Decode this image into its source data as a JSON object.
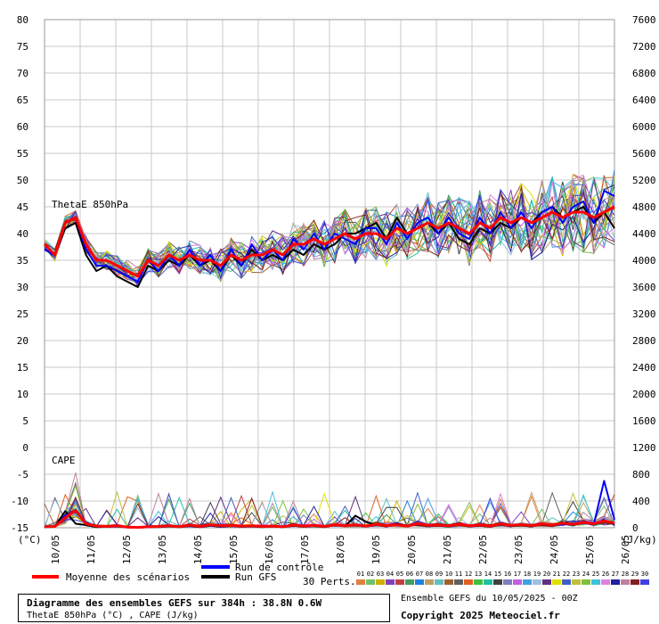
{
  "chart_data": {
    "type": "line",
    "title": "",
    "left_axis": {
      "label": "(°C)",
      "ticks": [
        80,
        75,
        70,
        65,
        60,
        55,
        50,
        45,
        40,
        35,
        30,
        25,
        20,
        15,
        10,
        5,
        0,
        -5,
        -10,
        -15
      ],
      "ylim": [
        -15,
        80
      ]
    },
    "right_axis": {
      "label": "(J/kg)",
      "ticks": [
        7600,
        7200,
        6800,
        6400,
        6000,
        5600,
        5200,
        4800,
        4400,
        4000,
        3600,
        3200,
        2800,
        2400,
        2000,
        1600,
        1200,
        800,
        400,
        0
      ],
      "ylim": [
        0,
        7600
      ]
    },
    "x_labels": [
      "10/05",
      "11/05",
      "12/05",
      "13/05",
      "14/05",
      "15/05",
      "16/05",
      "17/05",
      "18/05",
      "19/05",
      "20/05",
      "21/05",
      "22/05",
      "23/05",
      "24/05",
      "25/05",
      "26/05"
    ],
    "panel_labels": {
      "thetae": "ThetaE 850hPa",
      "cape": "CAPE"
    },
    "thetae_mean": [
      38,
      36,
      42,
      43,
      38,
      35,
      35,
      34,
      33,
      32,
      35,
      34,
      36,
      35,
      36,
      35,
      35,
      34,
      36,
      35,
      36,
      36,
      37,
      36,
      38,
      38,
      39,
      38,
      39,
      40,
      39,
      40,
      40,
      39,
      41,
      40,
      41,
      42,
      41,
      42,
      41,
      40,
      42,
      41,
      43,
      42,
      43,
      42,
      43,
      44,
      43,
      44,
      44,
      43,
      44,
      45
    ],
    "thetae_control": [
      37,
      36,
      42,
      43,
      37,
      34,
      34,
      33,
      32,
      31,
      35,
      33,
      36,
      34,
      37,
      34,
      36,
      33,
      37,
      34,
      38,
      35,
      37,
      35,
      39,
      37,
      40,
      37,
      40,
      39,
      38,
      41,
      41,
      38,
      42,
      39,
      42,
      43,
      40,
      43,
      40,
      39,
      43,
      40,
      44,
      41,
      44,
      41,
      44,
      45,
      42,
      45,
      46,
      42,
      48,
      47
    ],
    "thetae_gfs": [
      37,
      36,
      41,
      42,
      36,
      33,
      34,
      32,
      31,
      30,
      34,
      33,
      35,
      34,
      36,
      34,
      35,
      33,
      36,
      34,
      37,
      35,
      36,
      35,
      37,
      36,
      38,
      37,
      38,
      40,
      40,
      41,
      42,
      39,
      43,
      40,
      41,
      42,
      40,
      42,
      39,
      38,
      41,
      40,
      42,
      41,
      43,
      42,
      44,
      45,
      43,
      44,
      45,
      42,
      44,
      41
    ],
    "cape_mean": [
      15,
      20,
      150,
      260,
      60,
      25,
      20,
      30,
      10,
      5,
      15,
      20,
      30,
      15,
      40,
      20,
      45,
      30,
      35,
      25,
      30,
      20,
      25,
      15,
      40,
      25,
      35,
      20,
      45,
      30,
      40,
      25,
      50,
      30,
      45,
      25,
      60,
      35,
      40,
      30,
      50,
      30,
      40,
      25,
      55,
      35,
      45,
      30,
      60,
      40,
      70,
      50,
      80,
      60,
      100,
      70
    ],
    "cape_control": [
      10,
      15,
      180,
      240,
      80,
      20,
      15,
      25,
      5,
      0,
      10,
      15,
      25,
      10,
      30,
      15,
      35,
      20,
      30,
      20,
      25,
      15,
      30,
      10,
      35,
      20,
      30,
      15,
      40,
      25,
      35,
      20,
      45,
      25,
      40,
      20,
      55,
      30,
      35,
      25,
      45,
      25,
      35,
      20,
      50,
      30,
      40,
      25,
      55,
      35,
      60,
      45,
      70,
      50,
      700,
      120
    ],
    "cape_gfs": [
      12,
      18,
      250,
      60,
      40,
      10,
      15,
      20,
      5,
      0,
      10,
      10,
      20,
      10,
      25,
      10,
      30,
      15,
      25,
      15,
      20,
      10,
      20,
      10,
      30,
      15,
      25,
      10,
      40,
      25,
      180,
      90,
      40,
      20,
      60,
      30,
      45,
      25,
      30,
      20,
      40,
      20,
      30,
      15,
      45,
      25,
      35,
      20,
      50,
      30,
      60,
      40,
      70,
      50,
      90,
      60
    ],
    "legend": {
      "mean_label": "Moyenne des scénarios",
      "control_label": "Run de contrôle",
      "gfs_label": "Run GFS",
      "perts_label": "30 Perts.",
      "pert_numbers": [
        "01",
        "02",
        "03",
        "04",
        "05",
        "06",
        "07",
        "08",
        "09",
        "10",
        "11",
        "12",
        "13",
        "14",
        "15",
        "16",
        "17",
        "18",
        "19",
        "20",
        "21",
        "22",
        "23",
        "24",
        "25",
        "26",
        "27",
        "28",
        "29",
        "30"
      ],
      "pert_colors": [
        "#e08040",
        "#70c070",
        "#d0b000",
        "#8040c0",
        "#c04040",
        "#40a060",
        "#2080e0",
        "#c0a060",
        "#60c0c0",
        "#a06030",
        "#606060",
        "#e06020",
        "#40c040",
        "#20c0a0",
        "#404040",
        "#8080c0",
        "#c060e0",
        "#40a0e0",
        "#a0c0e0",
        "#603080",
        "#e0e000",
        "#4060c0",
        "#c0c040",
        "#80c040",
        "#40c0e0",
        "#e080e0",
        "#2020a0",
        "#c080a0",
        "#802020",
        "#4040e0"
      ]
    },
    "colors": {
      "mean": "#ff0000",
      "control": "#0000ff",
      "gfs": "#000000"
    }
  },
  "footer": {
    "title": "Diagramme des ensembles GEFS sur 384h : 38.8N 0.6W",
    "subtitle": "ThetaE 850hPa (°C) , CAPE (J/kg)",
    "ensemble_date": "Ensemble GEFS du 10/05/2025 - 00Z",
    "copyright": "Copyright 2025 Meteociel.fr"
  }
}
